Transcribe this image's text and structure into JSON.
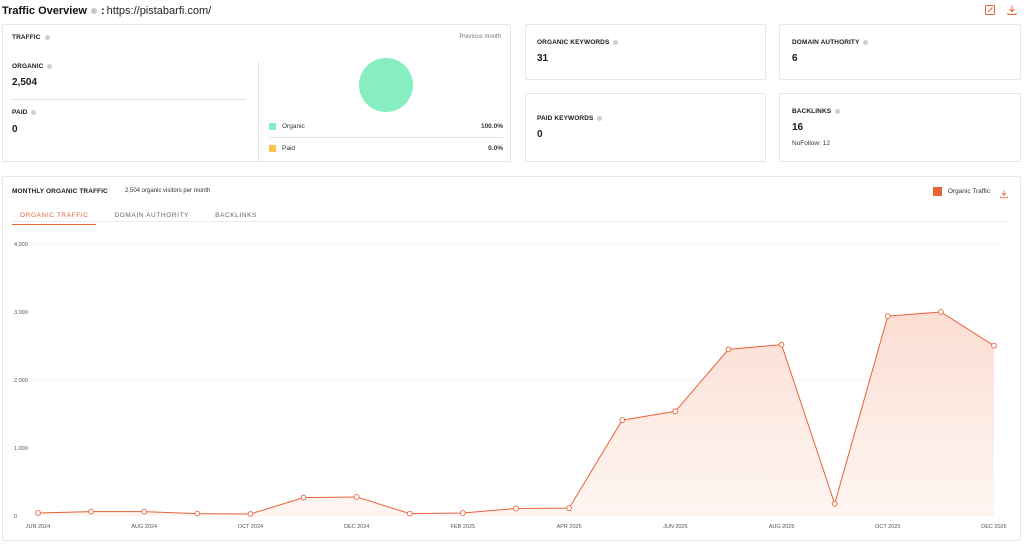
{
  "header": {
    "title": "Traffic Overview",
    "url": "https://pistabarfi.com/",
    "edit_icon": "edit-icon",
    "download_icon": "download-icon"
  },
  "traffic": {
    "label": "TRAFFIC",
    "previous_month": "Previous month",
    "organic_label": "ORGANIC",
    "organic_value": "2,504",
    "paid_label": "PAID",
    "paid_value": "0",
    "legend": [
      {
        "name": "Organic",
        "value": "100.0%",
        "color": "#86eec0"
      },
      {
        "name": "Paid",
        "value": "0.0%",
        "color": "#f7c24c"
      }
    ],
    "pie_fraction": 1.0
  },
  "organic_keywords": {
    "label": "ORGANIC KEYWORDS",
    "value": "31"
  },
  "paid_keywords": {
    "label": "PAID KEYWORDS",
    "value": "0"
  },
  "domain_authority": {
    "label": "DOMAIN AUTHORITY",
    "value": "6"
  },
  "backlinks": {
    "label": "BACKLINKS",
    "value": "16",
    "nofollow": "NoFollow: 12"
  },
  "monthly": {
    "title": "MONTHLY ORGANIC TRAFFIC",
    "subtitle": "2,504 organic visitors per month",
    "legend_label": "Organic Traffic",
    "legend_color": "#e8623a",
    "tabs": [
      "ORGANIC TRAFFIC",
      "DOMAIN AUTHORITY",
      "BACKLINKS"
    ],
    "active_tab": 0
  },
  "chart_data": {
    "type": "area",
    "title": "",
    "xlabel": "",
    "ylabel": "",
    "ylim": [
      0,
      4000
    ],
    "yticks": [
      0,
      1000,
      2000,
      3000,
      4000
    ],
    "ytick_labels": [
      "0",
      "1,000",
      "2,000",
      "3,000",
      "4,000"
    ],
    "x": [
      "JUN 2024",
      "JUL 2024",
      "AUG 2024",
      "SEP 2024",
      "OCT 2024",
      "NOV 2024",
      "DEC 2024",
      "JAN 2025",
      "FEB 2025",
      "MAR 2025",
      "APR 2025",
      "MAY 2025",
      "JUN 2025",
      "JUL 2025",
      "AUG 2025",
      "SEP 2025",
      "OCT 2025",
      "NOV 2025",
      "DEC 2025"
    ],
    "xtick_labels": [
      "JUN 2024",
      "",
      "AUG 2024",
      "",
      "OCT 2024",
      "",
      "DEC 2024",
      "",
      "FEB 2025",
      "",
      "APR 2025",
      "",
      "JUN 2025",
      "",
      "AUG 2025",
      "",
      "OCT 2025",
      "",
      "DEC 2025"
    ],
    "series": [
      {
        "name": "Organic Traffic",
        "color": "#e8623a",
        "values": [
          45,
          65,
          65,
          35,
          30,
          270,
          280,
          35,
          45,
          110,
          115,
          1410,
          1540,
          2450,
          2520,
          180,
          2940,
          3000,
          2504
        ]
      }
    ],
    "grid": "horizontal",
    "legend": "top-right"
  }
}
